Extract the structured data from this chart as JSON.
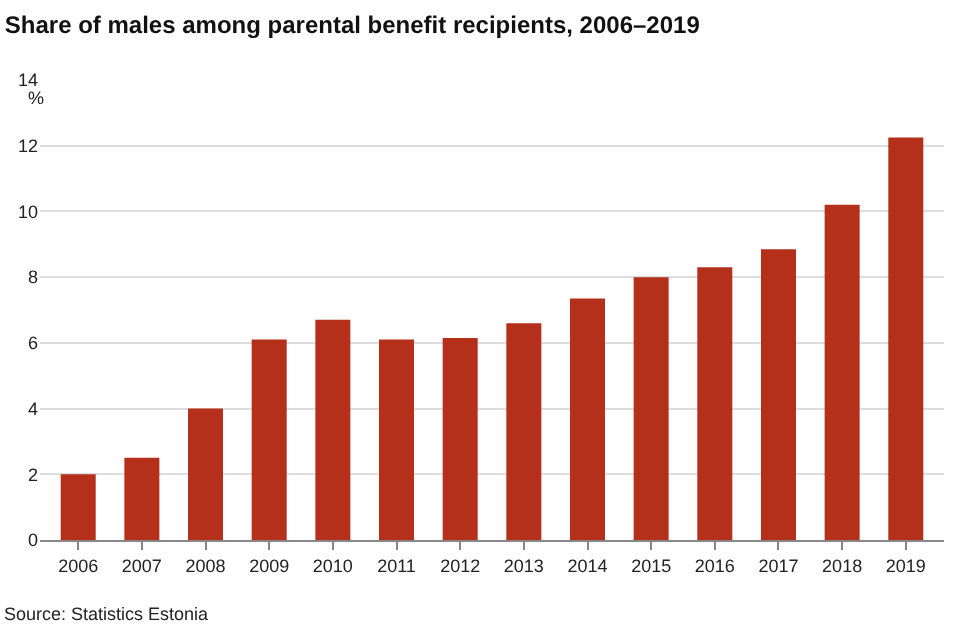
{
  "chart_data": {
    "type": "bar",
    "title": "Share of males among parental benefit recipients, 2006–2019",
    "ylabel": "%",
    "categories": [
      "2006",
      "2007",
      "2008",
      "2009",
      "2010",
      "2011",
      "2012",
      "2013",
      "2014",
      "2015",
      "2016",
      "2017",
      "2018",
      "2019"
    ],
    "values": [
      2.0,
      2.5,
      4.0,
      6.1,
      6.7,
      6.1,
      6.15,
      6.6,
      7.35,
      8.0,
      8.3,
      8.85,
      10.2,
      12.25
    ],
    "color": "#b5301a",
    "ylim": [
      0,
      14
    ],
    "yticks": [
      0,
      2,
      4,
      6,
      8,
      10,
      12,
      14
    ],
    "grid": "y",
    "annotations": [
      "Source: Statistics Estonia"
    ]
  }
}
